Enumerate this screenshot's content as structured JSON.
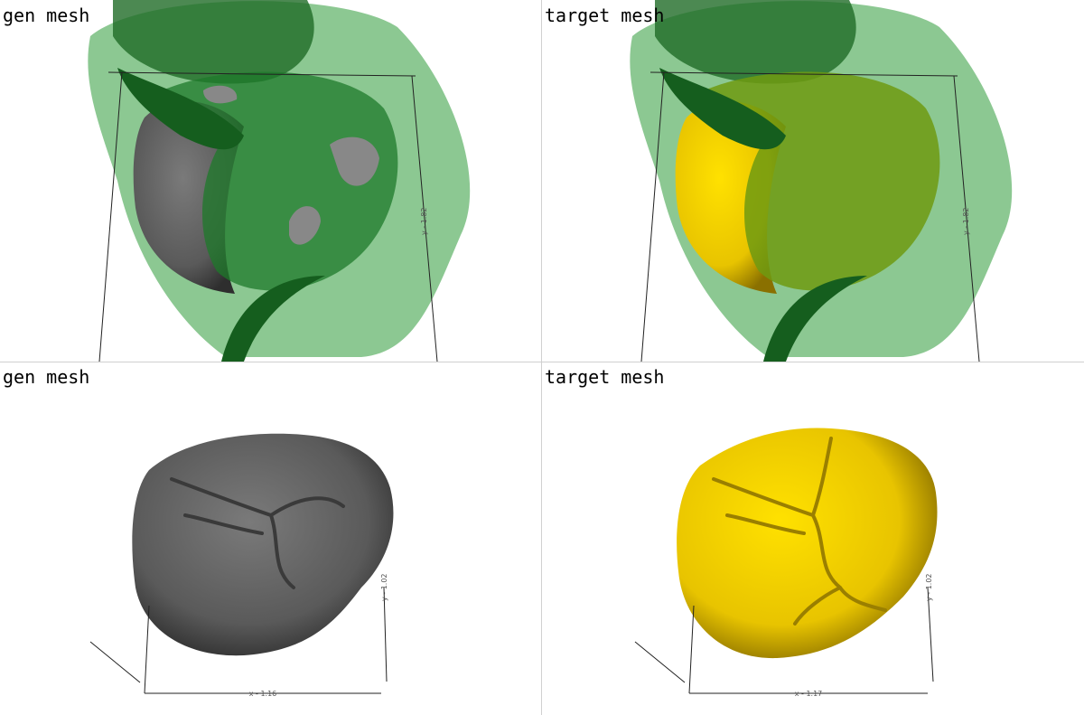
{
  "panels": [
    {
      "title": "gen mesh",
      "y_label": "y - 1.82"
    },
    {
      "title": "target mesh",
      "y_label": "y - 1.82"
    },
    {
      "title": "gen mesh",
      "x_label": "x - 1.16",
      "y_label": "y - 1.02"
    },
    {
      "title": "target mesh",
      "x_label": "x - 1.17",
      "y_label": "y - 1.02"
    }
  ]
}
